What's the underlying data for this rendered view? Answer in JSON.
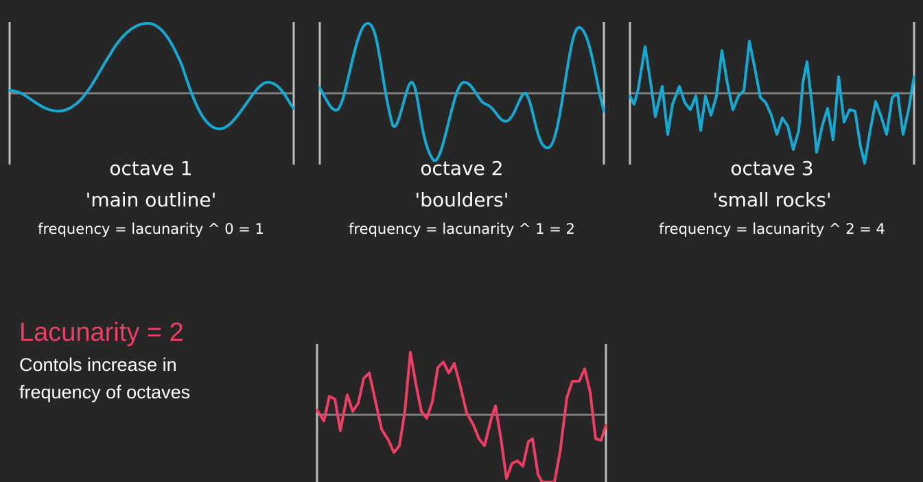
{
  "colors": {
    "background": "#262626",
    "octave_wave": "#16a9d3",
    "combined_wave": "#ee3e64",
    "axis": "#7d7d7d",
    "border": "#bdbdbd",
    "text": "#ffffff",
    "lacunarity_title": "#ee3e64"
  },
  "octaves": [
    {
      "title": "octave 1",
      "name": "'main outline'",
      "formula": "frequency = lacunarity ^ 0 = 1"
    },
    {
      "title": "octave 2",
      "name": "'boulders'",
      "formula": "frequency = lacunarity ^ 1 = 2"
    },
    {
      "title": "octave 3",
      "name": "'small rocks'",
      "formula": "frequency = lacunarity ^ 2 = 4"
    }
  ],
  "lacunarity": {
    "title": "Lacunarity = 2",
    "description": "Contols increase in frequency of octaves"
  }
}
